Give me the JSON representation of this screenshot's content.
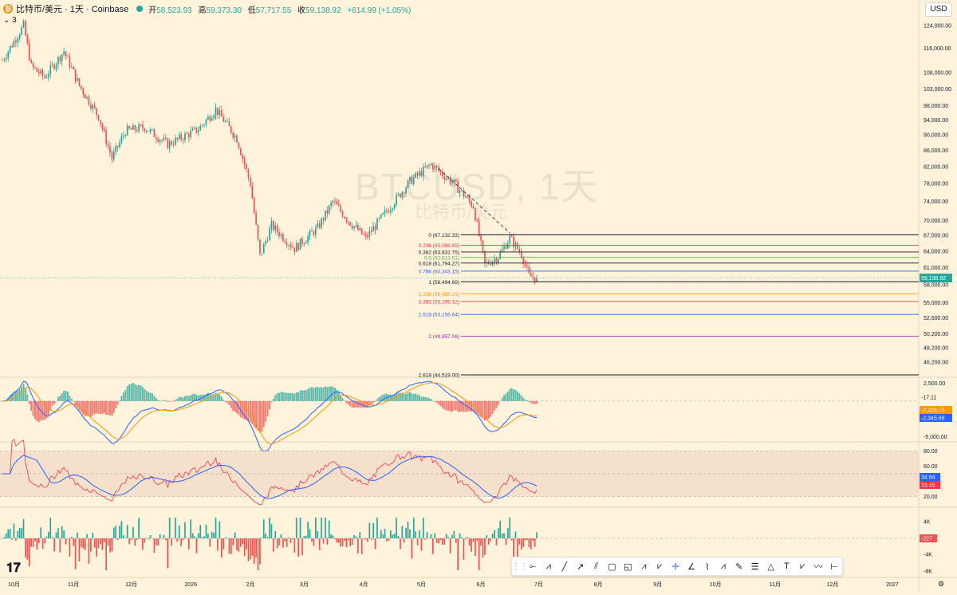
{
  "header": {
    "icon_glyph": "₿",
    "symbol": "比特币/美元 · 1天 · Coinbase",
    "ohlc": {
      "open_label": "开",
      "open": "58,523.93",
      "high_label": "高",
      "high": "59,373.30",
      "low_label": "低",
      "low": "57,717.55",
      "close_label": "收",
      "close": "59,138.92",
      "change": "+614.99 (+1.05%)"
    },
    "indicator_count": "3",
    "currency": "USD"
  },
  "watermark": {
    "main": "BTCUSD, 1天",
    "sub": "比特币/美元"
  },
  "colors": {
    "background": "#fff3dc",
    "up": "#26a69a",
    "down": "#ef5350",
    "macd": "#2962ff",
    "signal": "#ff9800",
    "rsi": "#f23645",
    "rsi_ma": "#2962ff"
  },
  "chart_data": [
    {
      "type": "candlestick",
      "series_name": "BTCUSD",
      "y_scale": "log",
      "ylim": [
        44519,
        124000
      ],
      "y_ticks": [
        "124,000.00",
        "116,000.00",
        "108,000.00",
        "103,000.00",
        "98,000.00",
        "94,000.00",
        "90,000.00",
        "86,000.00",
        "82,000.00",
        "78,000.00",
        "74,000.00",
        "70,000.00",
        "67,000.00",
        "64,000.00",
        "61,000.00",
        "58,000.00",
        "55,000.00",
        "52,600.00",
        "50,200.00",
        "48,200.00",
        "46,200.00"
      ],
      "x_ticks": [
        "10月",
        "11月",
        "12月",
        "2026",
        "2月",
        "3月",
        "4月",
        "5月",
        "6月",
        "7月",
        "8月",
        "9月",
        "10月",
        "11月",
        "12月",
        "2027"
      ],
      "trend_points": [
        {
          "date": "2025-09-25",
          "price": 112000
        },
        {
          "date": "2025-10-06",
          "price": 124000
        },
        {
          "date": "2025-10-10",
          "price": 110000
        },
        {
          "date": "2025-10-17",
          "price": 106500
        },
        {
          "date": "2025-10-27",
          "price": 115000
        },
        {
          "date": "2025-11-04",
          "price": 104000
        },
        {
          "date": "2025-11-14",
          "price": 95000
        },
        {
          "date": "2025-11-21",
          "price": 84000
        },
        {
          "date": "2025-11-28",
          "price": 91000
        },
        {
          "date": "2025-12-08",
          "price": 92000
        },
        {
          "date": "2025-12-20",
          "price": 87500
        },
        {
          "date": "2026-01-05",
          "price": 91500
        },
        {
          "date": "2026-01-14",
          "price": 97000
        },
        {
          "date": "2026-01-25",
          "price": 89000
        },
        {
          "date": "2026-02-01",
          "price": 78000
        },
        {
          "date": "2026-02-06",
          "price": 63000
        },
        {
          "date": "2026-02-12",
          "price": 69000
        },
        {
          "date": "2026-02-24",
          "price": 64500
        },
        {
          "date": "2026-03-08",
          "price": 68500
        },
        {
          "date": "2026-03-16",
          "price": 74000
        },
        {
          "date": "2026-03-24",
          "price": 70000
        },
        {
          "date": "2026-04-02",
          "price": 66500
        },
        {
          "date": "2026-04-14",
          "price": 72500
        },
        {
          "date": "2026-04-25",
          "price": 78500
        },
        {
          "date": "2026-05-06",
          "price": 82500
        },
        {
          "date": "2026-05-18",
          "price": 78000
        },
        {
          "date": "2026-05-28",
          "price": 73000
        },
        {
          "date": "2026-06-03",
          "price": 61500
        },
        {
          "date": "2026-06-10",
          "price": 63000
        },
        {
          "date": "2026-06-16",
          "price": 66500
        },
        {
          "date": "2026-06-22",
          "price": 63500
        },
        {
          "date": "2026-06-26",
          "price": 59500
        },
        {
          "date": "2026-06-30",
          "price": 59138.92
        }
      ],
      "last_price": "59,138.92",
      "fibonacci": [
        {
          "ratio": "0",
          "price": "67,132.33",
          "value": 67132.33,
          "color": "#131722"
        },
        {
          "ratio": "0.236",
          "price": "65,093.85",
          "value": 65093.85,
          "color": "#f23645"
        },
        {
          "ratio": "0.382",
          "price": "63,832.75",
          "value": 63832.75,
          "color": "#131722"
        },
        {
          "ratio": "0.5",
          "price": "62,813.51",
          "value": 62813.51,
          "color": "#4caf50"
        },
        {
          "ratio": "0.618",
          "price": "61,794.27",
          "value": 61794.27,
          "color": "#131722"
        },
        {
          "ratio": "0.786",
          "price": "60,343.15",
          "value": 60343.15,
          "color": "#2962ff"
        },
        {
          "ratio": "1",
          "price": "58,494.69",
          "value": 58494.69,
          "color": "#131722"
        },
        {
          "ratio": "1.236",
          "price": "56,456.21",
          "value": 56456.21,
          "color": "#ff9800"
        },
        {
          "ratio": "1.382",
          "price": "55,195.12",
          "value": 55195.12,
          "color": "#f23645"
        },
        {
          "ratio": "1.618",
          "price": "53,156.64",
          "value": 53156.64,
          "color": "#2962ff"
        },
        {
          "ratio": "2",
          "price": "49,857.06",
          "value": 49857.06,
          "color": "#9c27b0"
        },
        {
          "ratio": "2.618",
          "price": "44,519.00",
          "value": 44519.0,
          "color": "#131722"
        }
      ]
    },
    {
      "type": "macd",
      "ylim": [
        -5500,
        3000
      ],
      "y_ticks": [
        "2,500.00",
        "-5,000.00"
      ],
      "hist_last": "-17.11",
      "signal_last": "-2,328.75",
      "macd_last": "-2,345.86"
    },
    {
      "type": "rsi",
      "ylim": [
        10,
        90
      ],
      "y_ticks": [
        "80.00",
        "60.00",
        "20.00"
      ],
      "band": [
        20,
        80
      ],
      "rsi_ma_last": "34.64",
      "rsi_last": "33.45"
    },
    {
      "type": "volume_delta",
      "y_ticks": [
        "4K",
        "-4K",
        "-8K"
      ],
      "last": "-227"
    }
  ],
  "toolbar": {
    "tools": [
      "grip",
      "horizontal-ray",
      "abcd-pattern",
      "trend-line",
      "arrow",
      "parallel-channel",
      "rectangle",
      "anchored-box",
      "elliott-impulse",
      "elliott-abc",
      "cursor-crosshair",
      "trend-angle",
      "head-shoulders",
      "xabcd-pattern",
      "brush",
      "fib-retracement",
      "triangle-pattern",
      "text",
      "cypher-pattern",
      "elliott-wave",
      "date-range"
    ]
  }
}
